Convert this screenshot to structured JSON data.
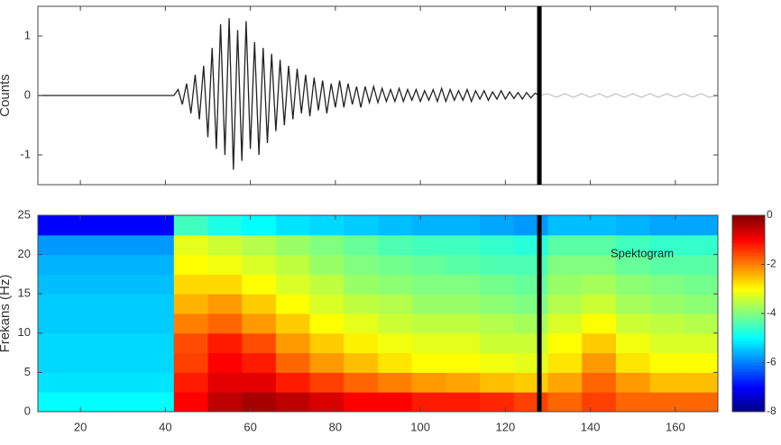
{
  "chart_data": [
    {
      "type": "line",
      "ylabel": "Counts",
      "xlim": [
        10,
        170
      ],
      "xticks": [
        20,
        40,
        60,
        80,
        100,
        120,
        140,
        160
      ],
      "ylim": [
        -1.5,
        1.5
      ],
      "yticks": [
        -1,
        0,
        1
      ],
      "cursor_x": 128,
      "series": [
        {
          "color": "#222222",
          "x": [
            10,
            42,
            43,
            44,
            45,
            46,
            47,
            48,
            49,
            50,
            51,
            52,
            53,
            54,
            55,
            56,
            57,
            58,
            59,
            60,
            61,
            62,
            63,
            64,
            65,
            66,
            67,
            68,
            69,
            70,
            71,
            72,
            73,
            74,
            75,
            76,
            77,
            78,
            79,
            80,
            81,
            82,
            83,
            84,
            85,
            86,
            87,
            88,
            89,
            90,
            91,
            92,
            93,
            94,
            95,
            96,
            97,
            98,
            99,
            100,
            101,
            102,
            103,
            104,
            105,
            106,
            107,
            108,
            109,
            110,
            111,
            112,
            113,
            114,
            115,
            116,
            117,
            118,
            119,
            120,
            121,
            122,
            123,
            124,
            125,
            126,
            127,
            128
          ],
          "values": [
            0,
            0,
            0.1,
            -0.15,
            0.2,
            -0.3,
            0.35,
            -0.4,
            0.5,
            -0.7,
            0.8,
            -0.9,
            1.2,
            -1,
            1.3,
            -1.25,
            1.1,
            -1.1,
            1.25,
            -0.9,
            0.9,
            -1,
            0.8,
            -0.8,
            0.7,
            -0.6,
            0.6,
            -0.5,
            0.5,
            -0.4,
            0.45,
            -0.3,
            0.35,
            -0.35,
            0.3,
            -0.25,
            0.25,
            -0.3,
            0.2,
            -0.2,
            0.25,
            -0.2,
            0.2,
            -0.15,
            0.15,
            -0.2,
            0.15,
            -0.12,
            0.15,
            -0.12,
            0.12,
            -0.1,
            0.1,
            -0.1,
            0.12,
            -0.1,
            0.1,
            -0.08,
            0.1,
            -0.1,
            0.08,
            -0.08,
            0.1,
            -0.1,
            0.12,
            -0.1,
            0.1,
            -0.08,
            0.08,
            -0.08,
            0.1,
            -0.1,
            0.08,
            -0.06,
            0.08,
            -0.08,
            0.06,
            -0.06,
            0.08,
            -0.06,
            0.06,
            -0.05,
            0.05,
            -0.06,
            0.05,
            -0.04,
            0.04,
            0
          ]
        },
        {
          "color": "#c8c8c8",
          "x": [
            128,
            130,
            132,
            134,
            136,
            138,
            140,
            142,
            144,
            146,
            148,
            150,
            152,
            154,
            156,
            158,
            160,
            162,
            164,
            166,
            168,
            170
          ],
          "values": [
            0,
            0.03,
            -0.03,
            0.03,
            -0.03,
            0.03,
            -0.03,
            0.03,
            -0.03,
            0.03,
            -0.03,
            0.03,
            -0.03,
            0.03,
            -0.03,
            0.03,
            -0.03,
            0.03,
            -0.03,
            0.03,
            -0.03,
            0
          ]
        }
      ]
    },
    {
      "type": "heatmap",
      "ylabel": "Frekans (Hz)",
      "annotation": "Spektogram",
      "xlim": [
        10,
        170
      ],
      "xticks": [
        20,
        40,
        60,
        80,
        100,
        120,
        140,
        160
      ],
      "ylim": [
        0,
        25
      ],
      "yticks": [
        0,
        5,
        10,
        15,
        20,
        25
      ],
      "cursor_x": 128,
      "colormap": "jet",
      "clim": [
        -8,
        0
      ],
      "cbar_ticks": [
        0,
        -2,
        -4,
        -6,
        -8
      ],
      "x_edges": [
        10,
        18,
        26,
        34,
        42,
        50,
        58,
        66,
        74,
        82,
        90,
        98,
        106,
        114,
        122,
        130,
        138,
        146,
        154,
        162,
        170
      ],
      "y_edges": [
        0,
        2.5,
        5,
        7.5,
        10,
        12.5,
        15,
        17.5,
        20,
        22.5,
        25
      ],
      "z": [
        [
          -5,
          -5,
          -5,
          -5,
          -1,
          -0.5,
          -0.3,
          -0.5,
          -0.7,
          -1,
          -1,
          -1.2,
          -1.2,
          -1.3,
          -1.5,
          -1.8,
          -1.5,
          -1.8,
          -1.8,
          -1.8
        ],
        [
          -5.2,
          -5.2,
          -5.2,
          -5.2,
          -1.2,
          -0.8,
          -0.8,
          -1.2,
          -1.5,
          -1.8,
          -2,
          -2.2,
          -2.3,
          -2.5,
          -2.6,
          -2.3,
          -1.8,
          -2.2,
          -2.5,
          -2.5
        ],
        [
          -5.3,
          -5.3,
          -5.3,
          -5.3,
          -1.5,
          -1,
          -1.2,
          -1.8,
          -2.2,
          -2.5,
          -2.8,
          -3,
          -3,
          -3.1,
          -3.2,
          -2.8,
          -2.2,
          -2.8,
          -3,
          -3
        ],
        [
          -5.3,
          -5.3,
          -5.3,
          -5.3,
          -1.6,
          -1.2,
          -1.6,
          -2.2,
          -2.6,
          -2.9,
          -3.1,
          -3.2,
          -3.2,
          -3.4,
          -3.4,
          -3,
          -2.6,
          -3.1,
          -3.3,
          -3.3
        ],
        [
          -5.4,
          -5.4,
          -5.4,
          -5.4,
          -2,
          -1.8,
          -2.2,
          -2.6,
          -3,
          -3.2,
          -3.4,
          -3.5,
          -3.5,
          -3.6,
          -3.7,
          -3.3,
          -3,
          -3.4,
          -3.5,
          -3.6
        ],
        [
          -5.4,
          -5.4,
          -5.4,
          -5.4,
          -2.4,
          -2.2,
          -2.6,
          -3,
          -3.3,
          -3.5,
          -3.6,
          -3.8,
          -3.8,
          -3.9,
          -4,
          -3.6,
          -3.4,
          -3.7,
          -3.8,
          -3.9
        ],
        [
          -5.5,
          -5.5,
          -5.5,
          -5.5,
          -2.7,
          -2.7,
          -3,
          -3.3,
          -3.5,
          -3.8,
          -3.9,
          -4,
          -4,
          -4.1,
          -4.2,
          -3.8,
          -3.7,
          -3.9,
          -4,
          -4.1
        ],
        [
          -5.6,
          -5.6,
          -5.6,
          -5.6,
          -3,
          -3.1,
          -3.3,
          -3.5,
          -3.8,
          -4,
          -4.1,
          -4.2,
          -4.3,
          -4.4,
          -4.4,
          -4,
          -4,
          -4.2,
          -4.3,
          -4.3
        ],
        [
          -5.8,
          -5.8,
          -5.8,
          -5.8,
          -3.2,
          -3.4,
          -3.6,
          -3.8,
          -4,
          -4.2,
          -4.4,
          -4.5,
          -4.5,
          -4.6,
          -4.7,
          -4.3,
          -4.3,
          -4.5,
          -4.6,
          -4.6
        ],
        [
          -7,
          -7,
          -7,
          -7,
          -4.5,
          -4.8,
          -5,
          -5.2,
          -5.3,
          -5.4,
          -5.5,
          -5.6,
          -5.6,
          -5.7,
          -5.8,
          -5.5,
          -5.5,
          -5.6,
          -5.7,
          -5.7
        ]
      ]
    }
  ]
}
